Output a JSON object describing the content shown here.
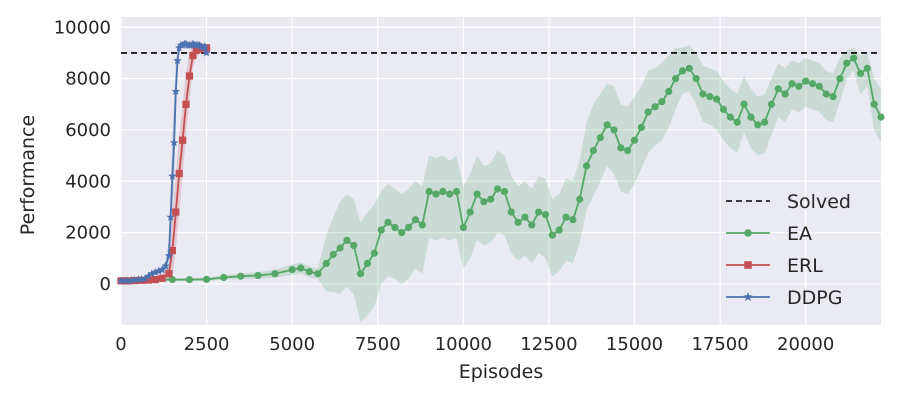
{
  "chart_data": {
    "type": "line",
    "title": "",
    "xlabel": "Episodes",
    "ylabel": "Performance",
    "xlim": [
      0,
      22200
    ],
    "ylim": [
      -1600,
      10400
    ],
    "x_ticks": [
      0,
      2500,
      5000,
      7500,
      10000,
      12500,
      15000,
      17500,
      20000
    ],
    "x_tick_labels": [
      "0",
      "2500",
      "5000",
      "7500",
      "10000",
      "12500",
      "15000",
      "17500",
      "20000"
    ],
    "y_ticks": [
      0,
      2000,
      4000,
      6000,
      8000,
      10000
    ],
    "y_tick_labels": [
      "0",
      "2000",
      "4000",
      "6000",
      "8000",
      "10000"
    ],
    "grid": true,
    "legend_position": "lower-right",
    "reference_line": {
      "name": "Solved",
      "y": 9000,
      "color": "#000000",
      "style": "dashed"
    },
    "series": [
      {
        "name": "EA",
        "color": "#55a868",
        "marker": "circle",
        "x": [
          0,
          500,
          1000,
          1500,
          2000,
          2500,
          3000,
          3500,
          4000,
          4500,
          5000,
          5250,
          5500,
          5750,
          6000,
          6200,
          6400,
          6600,
          6800,
          7000,
          7200,
          7400,
          7600,
          7800,
          8000,
          8200,
          8400,
          8600,
          8800,
          9000,
          9200,
          9400,
          9600,
          9800,
          10000,
          10200,
          10400,
          10600,
          10800,
          11000,
          11200,
          11400,
          11600,
          11800,
          12000,
          12200,
          12400,
          12600,
          12800,
          13000,
          13200,
          13400,
          13600,
          13800,
          14000,
          14200,
          14400,
          14600,
          14800,
          15000,
          15200,
          15400,
          15600,
          15800,
          16000,
          16200,
          16400,
          16600,
          16800,
          17000,
          17200,
          17400,
          17600,
          17800,
          18000,
          18200,
          18400,
          18600,
          18800,
          19000,
          19200,
          19400,
          19600,
          19800,
          20000,
          20200,
          20400,
          20600,
          20800,
          21000,
          21200,
          21400,
          21600,
          21800,
          22000,
          22200
        ],
        "values": [
          120,
          150,
          160,
          170,
          170,
          180,
          250,
          300,
          330,
          400,
          560,
          620,
          480,
          400,
          800,
          1150,
          1400,
          1700,
          1500,
          400,
          800,
          1200,
          2100,
          2400,
          2200,
          2000,
          2200,
          2500,
          2300,
          3600,
          3500,
          3600,
          3500,
          3600,
          2200,
          2800,
          3500,
          3200,
          3300,
          3700,
          3600,
          2800,
          2400,
          2600,
          2300,
          2800,
          2700,
          1900,
          2100,
          2600,
          2500,
          3300,
          4600,
          5200,
          5700,
          6200,
          6000,
          5300,
          5200,
          5600,
          6100,
          6700,
          6900,
          7100,
          7500,
          8000,
          8300,
          8400,
          8000,
          7400,
          7300,
          7200,
          6800,
          6500,
          6300,
          7000,
          6500,
          6200,
          6300,
          7000,
          7600,
          7400,
          7800,
          7700,
          7900,
          7800,
          7700,
          7400,
          7300,
          8000,
          8600,
          8800,
          8200,
          8400,
          7000,
          6500
        ],
        "band_upper": [
          160,
          200,
          220,
          230,
          230,
          250,
          340,
          420,
          460,
          560,
          760,
          840,
          700,
          600,
          1900,
          2600,
          3200,
          3500,
          3300,
          2400,
          2800,
          3100,
          3600,
          3900,
          3700,
          3500,
          3700,
          4000,
          3800,
          5000,
          4900,
          5000,
          4800,
          5000,
          3800,
          4300,
          5000,
          4600,
          4700,
          5200,
          5000,
          4200,
          3800,
          4000,
          3700,
          4200,
          4100,
          3300,
          3500,
          4100,
          4000,
          4800,
          6300,
          7000,
          7400,
          7800,
          7700,
          7000,
          6900,
          7300,
          7700,
          8300,
          8400,
          8600,
          8900,
          9200,
          9200,
          9300,
          9000,
          8500,
          8400,
          8300,
          7900,
          7600,
          7400,
          8100,
          7600,
          7300,
          7400,
          8000,
          8600,
          8400,
          8700,
          8600,
          8800,
          8700,
          8600,
          8300,
          8200,
          8800,
          9100,
          9200,
          8900,
          9000,
          8000,
          7600
        ],
        "band_lower": [
          80,
          100,
          100,
          110,
          110,
          110,
          160,
          180,
          200,
          240,
          360,
          400,
          260,
          200,
          -300,
          -300,
          -400,
          -100,
          -400,
          -1500,
          -1200,
          -900,
          0,
          300,
          200,
          0,
          200,
          600,
          400,
          1800,
          1700,
          1800,
          1700,
          1800,
          600,
          1000,
          1700,
          1500,
          1600,
          2000,
          1900,
          1200,
          900,
          1100,
          800,
          1200,
          1000,
          300,
          500,
          900,
          800,
          1600,
          2900,
          3400,
          4000,
          4600,
          4300,
          3600,
          3500,
          3900,
          4500,
          5100,
          5400,
          5600,
          6100,
          6800,
          7400,
          7500,
          7000,
          6300,
          6200,
          6000,
          5600,
          5300,
          5100,
          5900,
          5300,
          5000,
          5100,
          5800,
          6500,
          6300,
          6800,
          6700,
          6900,
          6800,
          6700,
          6400,
          6300,
          7100,
          8000,
          8300,
          7400,
          7700,
          6000,
          5500
        ]
      },
      {
        "name": "ERL",
        "color": "#c44e52",
        "marker": "square",
        "x": [
          0,
          200,
          400,
          600,
          800,
          1000,
          1200,
          1400,
          1500,
          1600,
          1700,
          1800,
          1900,
          2000,
          2100,
          2200,
          2300,
          2400,
          2500
        ],
        "values": [
          120,
          120,
          130,
          140,
          150,
          170,
          220,
          400,
          1300,
          2800,
          4300,
          5600,
          7000,
          8100,
          8900,
          9100,
          9200,
          9150,
          9200
        ],
        "band_upper": [
          180,
          180,
          190,
          210,
          230,
          270,
          360,
          700,
          2600,
          4300,
          5800,
          7000,
          8200,
          9000,
          9400,
          9400,
          9400,
          9350,
          9350
        ],
        "band_lower": [
          60,
          60,
          70,
          80,
          80,
          90,
          100,
          150,
          300,
          1300,
          2800,
          4200,
          5800,
          7200,
          8400,
          8800,
          9000,
          8950,
          9050
        ]
      },
      {
        "name": "DDPG",
        "color": "#4c72b0",
        "marker": "star",
        "x": [
          0,
          100,
          200,
          300,
          400,
          500,
          600,
          700,
          800,
          900,
          1000,
          1100,
          1200,
          1300,
          1400,
          1450,
          1500,
          1550,
          1600,
          1650,
          1700,
          1750,
          1800,
          1850,
          1900,
          1950,
          2000,
          2050,
          2100,
          2150,
          2200,
          2250,
          2300,
          2350,
          2400,
          2450,
          2500
        ],
        "values": [
          120,
          130,
          120,
          140,
          150,
          170,
          180,
          200,
          300,
          400,
          450,
          500,
          550,
          700,
          1100,
          2600,
          4200,
          5500,
          7500,
          8700,
          9200,
          9300,
          9300,
          9350,
          9350,
          9300,
          9300,
          9300,
          9350,
          9300,
          9300,
          9300,
          9300,
          9250,
          9200,
          9250,
          9000
        ],
        "band_upper": [
          150,
          160,
          150,
          170,
          190,
          210,
          230,
          260,
          380,
          500,
          560,
          620,
          680,
          900,
          1700,
          3600,
          5800,
          7200,
          8600,
          9200,
          9400,
          9400,
          9400,
          9400,
          9400,
          9380,
          9380,
          9380,
          9400,
          9380,
          9380,
          9380,
          9380,
          9350,
          9300,
          9350,
          9200
        ],
        "band_lower": [
          90,
          100,
          90,
          110,
          110,
          130,
          130,
          140,
          220,
          300,
          340,
          380,
          420,
          500,
          500,
          1600,
          2600,
          3800,
          6400,
          8200,
          9000,
          9200,
          9200,
          9300,
          9300,
          9220,
          9220,
          9220,
          9300,
          9220,
          9220,
          9220,
          9220,
          9150,
          9100,
          9150,
          8800
        ]
      }
    ]
  }
}
